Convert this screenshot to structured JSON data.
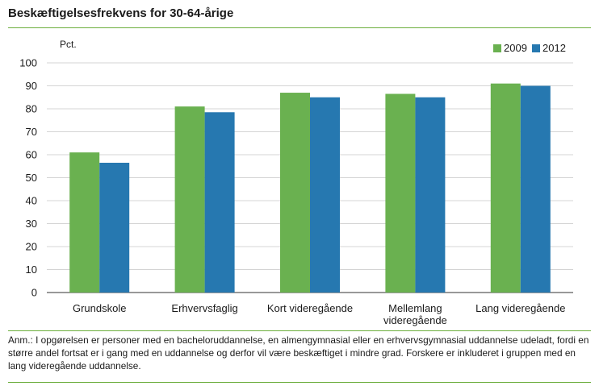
{
  "header": {
    "title": "Beskæftigelsesfrekvens for 30-64-årige"
  },
  "chart_data": {
    "type": "bar",
    "ylabel": "Pct.",
    "ylim": [
      0,
      100
    ],
    "yticks": [
      0,
      10,
      20,
      30,
      40,
      50,
      60,
      70,
      80,
      90,
      100
    ],
    "grid": true,
    "legend_position": "top-right",
    "categories": [
      "Grundskole",
      "Erhvervsfaglig",
      "Kort videregående",
      "Mellemlang videregående",
      "Lang videregående"
    ],
    "category_lines": [
      [
        "Grundskole"
      ],
      [
        "Erhvervsfaglig"
      ],
      [
        "Kort videregående"
      ],
      [
        "Mellemlang",
        "videregående"
      ],
      [
        "Lang videregående"
      ]
    ],
    "series": [
      {
        "name": "2009",
        "color": "#6ab150",
        "values": [
          61,
          81,
          87,
          86.5,
          91
        ]
      },
      {
        "name": "2012",
        "color": "#2678b0",
        "values": [
          56.5,
          78.5,
          85,
          85,
          90
        ]
      }
    ]
  },
  "footer": {
    "note": "Anm.: I opgørelsen er personer med en bacheloruddannelse, en almengymnasial eller en erhvervsgymnasial uddannelse udeladt, fordi en større andel fortsat er i gang med en uddannelse og derfor vil være beskæftiget i mindre grad. Forskere er inkluderet i gruppen med en lang videregående uddannelse."
  }
}
